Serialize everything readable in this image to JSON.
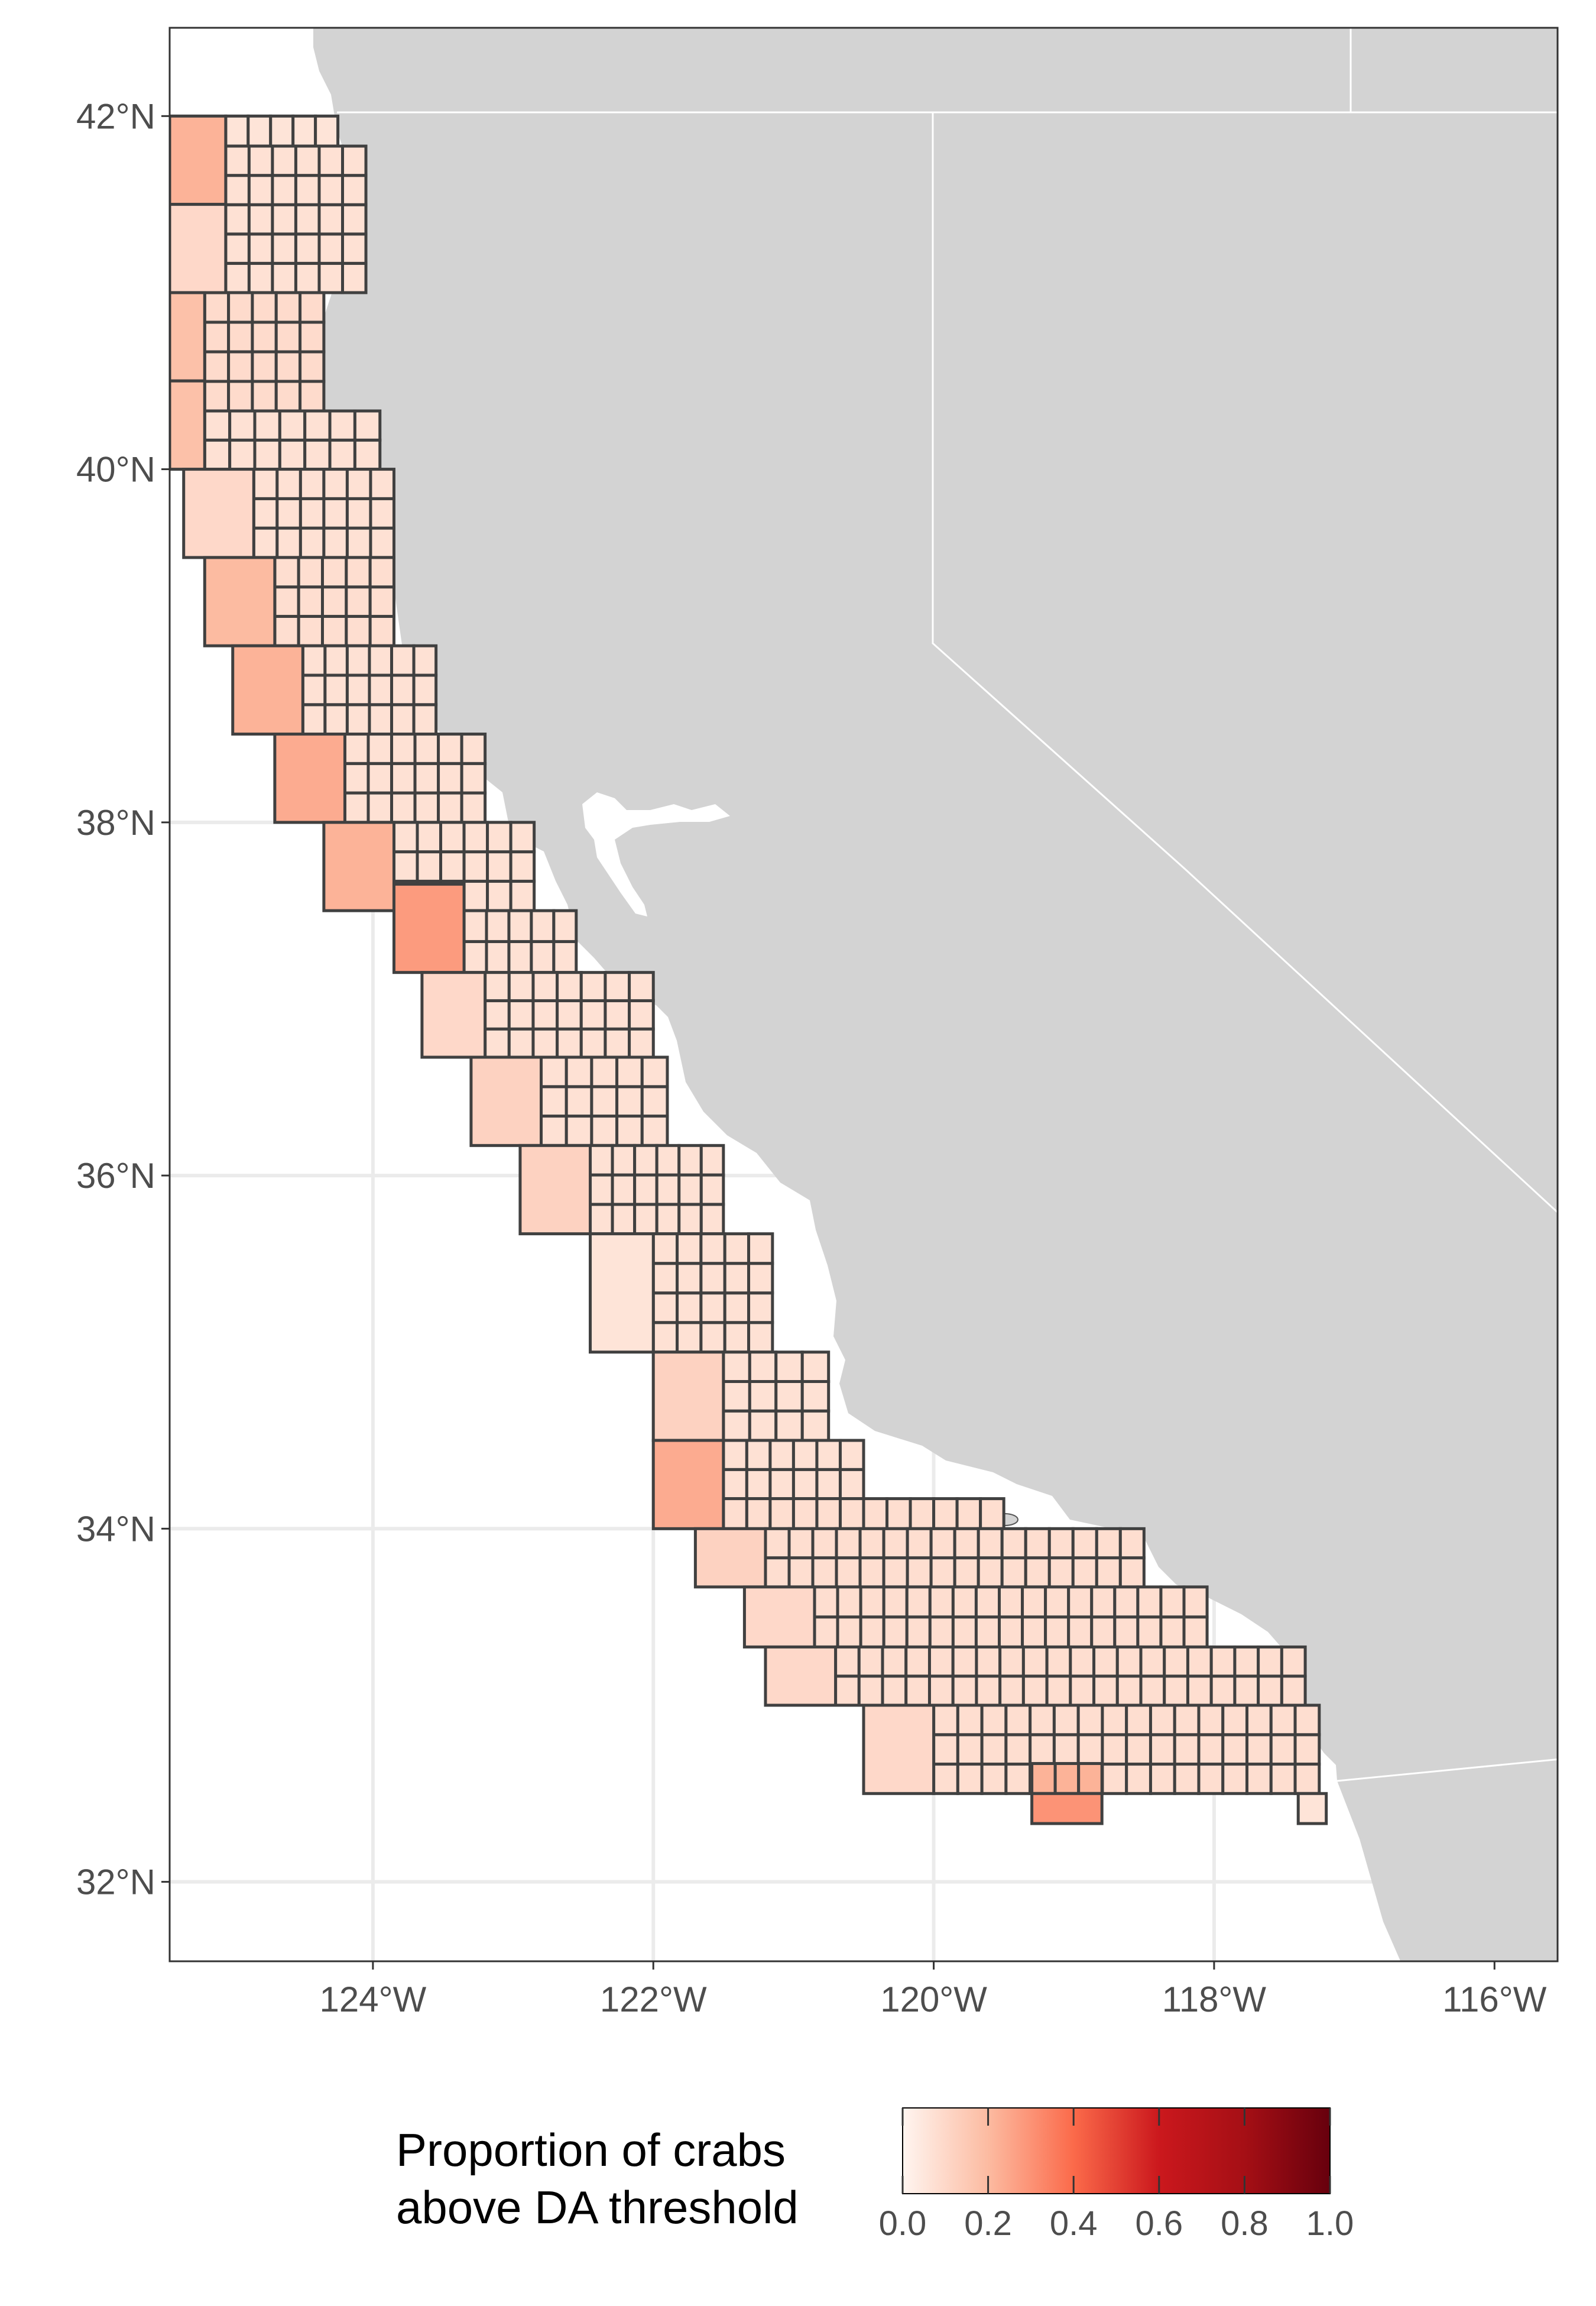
{
  "map": {
    "type": "map",
    "title": "",
    "lon_range": [
      -125.45,
      -115.55
    ],
    "lat_range": [
      31.55,
      42.5
    ],
    "x_ticks": [
      {
        "value": -124,
        "label": "124°W"
      },
      {
        "value": -122,
        "label": "122°W"
      },
      {
        "value": -120,
        "label": "120°W"
      },
      {
        "value": -118,
        "label": "118°W"
      },
      {
        "value": -116,
        "label": "116°W"
      }
    ],
    "y_ticks": [
      {
        "value": 32,
        "label": "32°N"
      },
      {
        "value": 34,
        "label": "34°N"
      },
      {
        "value": 36,
        "label": "36°N"
      },
      {
        "value": 38,
        "label": "38°N"
      },
      {
        "value": 40,
        "label": "40°N"
      },
      {
        "value": 42,
        "label": "42°N"
      }
    ],
    "grid": true,
    "land_color": "#d3d3d3",
    "water_color": "#ffffff",
    "cell_border_color": "#404040",
    "panel_border_color": "#333333"
  },
  "legend": {
    "title_line1": "Proportion of crabs",
    "title_line2": "above DA threshold",
    "labels": [
      "0.0",
      "0.2",
      "0.4",
      "0.6",
      "0.8",
      "1.0"
    ],
    "values": [
      0,
      0.2,
      0.4,
      0.6,
      0.8,
      1.0
    ],
    "gradient": [
      "#fff5f0",
      "#fcbba1",
      "#fb6a4a",
      "#cb181d",
      "#a50f15",
      "#67000d"
    ],
    "position": "bottom"
  },
  "chart_data": {
    "type": "heatmap",
    "description_units": "each cell: lon/lat bounds in degrees, value = proportion of crabs above DA threshold",
    "offshore_cells": [
      {
        "lon": [
          -125.45,
          -125.05
        ],
        "lat": [
          41.5,
          42.0
        ],
        "value": 0.22
      },
      {
        "lon": [
          -125.45,
          -125.05
        ],
        "lat": [
          41.0,
          41.5
        ],
        "value": 0.1
      },
      {
        "lon": [
          -125.45,
          -125.2
        ],
        "lat": [
          40.5,
          41.0
        ],
        "value": 0.18
      },
      {
        "lon": [
          -125.45,
          -125.2
        ],
        "lat": [
          40.0,
          40.5
        ],
        "value": 0.18
      },
      {
        "lon": [
          -125.35,
          -124.85
        ],
        "lat": [
          39.5,
          40.0
        ],
        "value": 0.1
      },
      {
        "lon": [
          -125.2,
          -124.7
        ],
        "lat": [
          39.0,
          39.5
        ],
        "value": 0.2
      },
      {
        "lon": [
          -125.0,
          -124.5
        ],
        "lat": [
          38.5,
          39.0
        ],
        "value": 0.22
      },
      {
        "lon": [
          -124.7,
          -124.2
        ],
        "lat": [
          38.0,
          38.5
        ],
        "value": 0.24
      },
      {
        "lon": [
          -124.35,
          -123.85
        ],
        "lat": [
          37.5,
          38.0
        ],
        "value": 0.22
      },
      {
        "lon": [
          -123.85,
          -123.35
        ],
        "lat": [
          37.15,
          37.65
        ],
        "value": 0.28
      },
      {
        "lon": [
          -123.65,
          -123.2
        ],
        "lat": [
          36.67,
          37.15
        ],
        "value": 0.1
      },
      {
        "lon": [
          -123.3,
          -122.8
        ],
        "lat": [
          36.17,
          36.67
        ],
        "value": 0.12
      },
      {
        "lon": [
          -122.95,
          -122.45
        ],
        "lat": [
          35.67,
          36.17
        ],
        "value": 0.12
      },
      {
        "lon": [
          -122.45,
          -122.0
        ],
        "lat": [
          35.0,
          35.67
        ],
        "value": 0.06
      },
      {
        "lon": [
          -122.0,
          -121.5
        ],
        "lat": [
          34.5,
          35.0
        ],
        "value": 0.12
      },
      {
        "lon": [
          -122.0,
          -121.5
        ],
        "lat": [
          34.0,
          34.5
        ],
        "value": 0.24
      },
      {
        "lon": [
          -121.7,
          -121.2
        ],
        "lat": [
          33.67,
          34.0
        ],
        "value": 0.12
      },
      {
        "lon": [
          -121.35,
          -120.85
        ],
        "lat": [
          33.33,
          33.67
        ],
        "value": 0.1
      },
      {
        "lon": [
          -121.2,
          -120.7
        ],
        "lat": [
          33.0,
          33.33
        ],
        "value": 0.1
      },
      {
        "lon": [
          -120.5,
          -120.0
        ],
        "lat": [
          32.5,
          33.0
        ],
        "value": 0.1
      },
      {
        "lon": [
          -119.3,
          -118.8
        ],
        "lat": [
          32.33,
          32.5
        ],
        "value": 0.3
      }
    ],
    "inshore_grid": {
      "cell_size_deg": 0.1667,
      "bands": [
        {
          "lat": [
            41.83,
            42.0
          ],
          "lon": [
            -125.05,
            -124.25
          ],
          "value": 0.06
        },
        {
          "lat": [
            41.0,
            41.83
          ],
          "lon": [
            -125.05,
            -124.05
          ],
          "value": 0.07
        },
        {
          "lat": [
            40.33,
            41.0
          ],
          "lon": [
            -125.2,
            -124.35
          ],
          "value": 0.09
        },
        {
          "lat": [
            40.0,
            40.33
          ],
          "lon": [
            -125.2,
            -123.95
          ],
          "value": 0.07
        },
        {
          "lat": [
            39.5,
            40.0
          ],
          "lon": [
            -124.85,
            -123.85
          ],
          "value": 0.07
        },
        {
          "lat": [
            39.0,
            39.5
          ],
          "lon": [
            -124.7,
            -123.85
          ],
          "value": 0.08
        },
        {
          "lat": [
            38.5,
            39.0
          ],
          "lon": [
            -124.5,
            -123.55
          ],
          "value": 0.07
        },
        {
          "lat": [
            38.0,
            38.5
          ],
          "lon": [
            -124.2,
            -123.2
          ],
          "value": 0.07
        },
        {
          "lat": [
            37.5,
            38.0
          ],
          "lon": [
            -123.85,
            -122.85
          ],
          "value": 0.07
        },
        {
          "lat": [
            37.15,
            37.5
          ],
          "lon": [
            -123.35,
            -122.55
          ],
          "value": 0.07
        },
        {
          "lat": [
            36.67,
            37.15
          ],
          "lon": [
            -123.2,
            -122.0
          ],
          "value": 0.07
        },
        {
          "lat": [
            36.17,
            36.67
          ],
          "lon": [
            -122.8,
            -121.9
          ],
          "value": 0.07
        },
        {
          "lat": [
            35.67,
            36.17
          ],
          "lon": [
            -122.45,
            -121.5
          ],
          "value": 0.07
        },
        {
          "lat": [
            35.0,
            35.67
          ],
          "lon": [
            -122.0,
            -121.15
          ],
          "value": 0.07
        },
        {
          "lat": [
            34.5,
            35.0
          ],
          "lon": [
            -121.5,
            -120.75
          ],
          "value": 0.07
        },
        {
          "lat": [
            34.17,
            34.5
          ],
          "lon": [
            -121.5,
            -120.5
          ],
          "value": 0.07
        },
        {
          "lat": [
            34.0,
            34.17
          ],
          "lon": [
            -121.5,
            -119.5
          ],
          "value": 0.08
        },
        {
          "lat": [
            33.67,
            34.0
          ],
          "lon": [
            -121.2,
            -118.5
          ],
          "value": 0.08
        },
        {
          "lat": [
            33.33,
            33.67
          ],
          "lon": [
            -120.85,
            -118.05
          ],
          "value": 0.08
        },
        {
          "lat": [
            33.0,
            33.33
          ],
          "lon": [
            -120.7,
            -117.35
          ],
          "value": 0.08
        },
        {
          "lat": [
            32.5,
            33.0
          ],
          "lon": [
            -120.0,
            -117.25
          ],
          "value": 0.08
        },
        {
          "lat": [
            32.5,
            32.67
          ],
          "lon": [
            -119.3,
            -118.8
          ],
          "value": 0.22
        },
        {
          "lat": [
            32.33,
            32.5
          ],
          "lon": [
            -117.4,
            -117.2
          ],
          "value": 0.06
        }
      ]
    }
  }
}
